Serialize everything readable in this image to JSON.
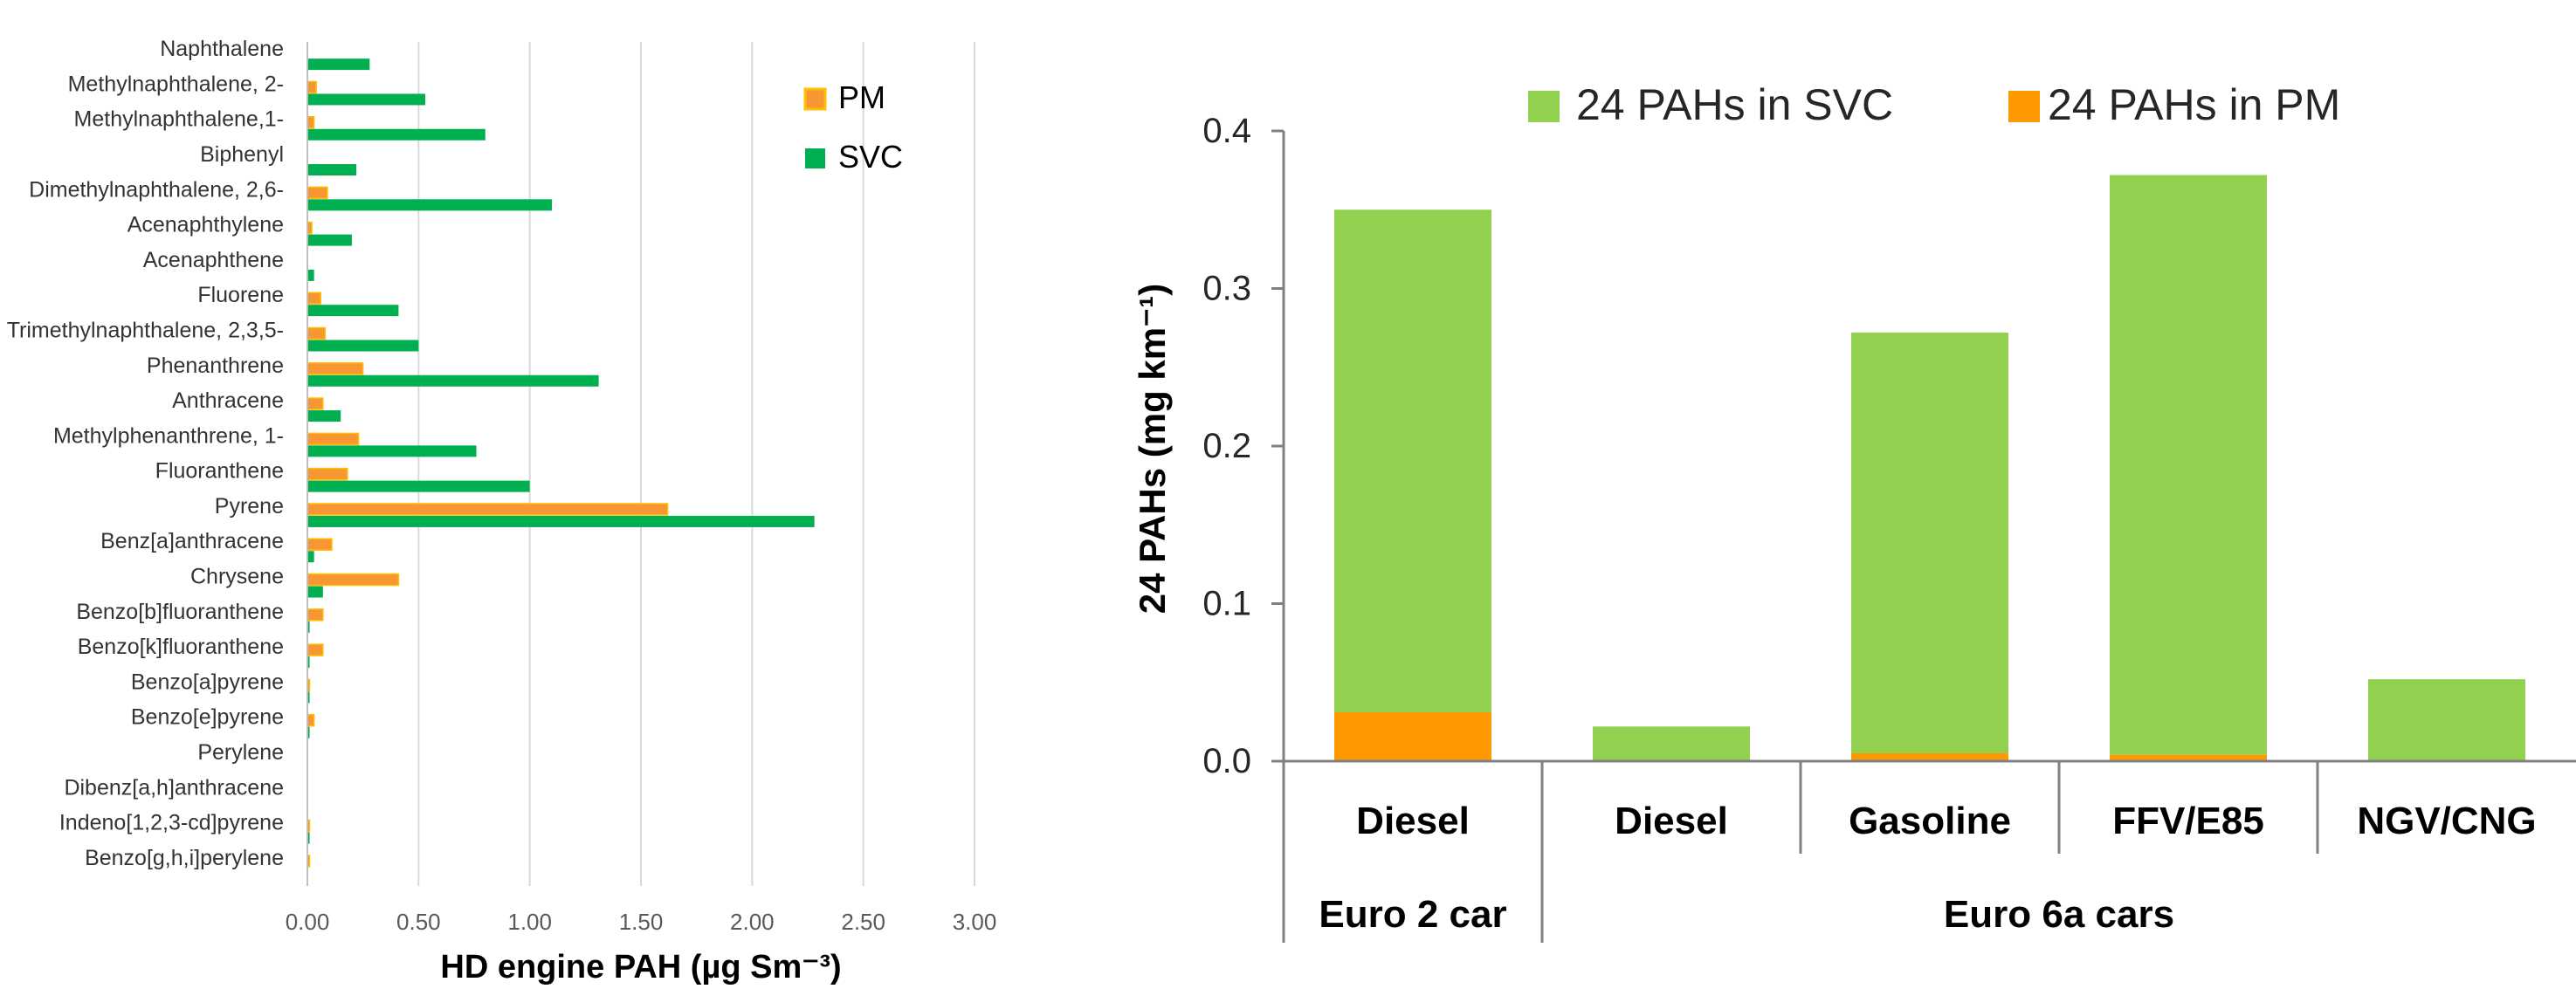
{
  "chart_data": [
    {
      "type": "bar",
      "orientation": "horizontal",
      "categories": [
        "Naphthalene",
        "Methylnaphthalene, 2-",
        "Methylnaphthalene,1-",
        "Biphenyl",
        "Dimethylnaphthalene, 2,6-",
        "Acenaphthylene",
        "Acenaphthene",
        "Fluorene",
        "Trimethylnaphthalene, 2,3,5-",
        "Phenanthrene",
        "Anthracene",
        "Methylphenanthrene, 1-",
        "Fluoranthene",
        "Pyrene",
        "Benz[a]anthracene",
        "Chrysene",
        "Benzo[b]fluoranthene",
        "Benzo[k]fluoranthene",
        "Benzo[a]pyrene",
        "Benzo[e]pyrene",
        "Perylene",
        "Dibenz[a,h]anthracene",
        "Indeno[1,2,3-cd]pyrene",
        "Benzo[g,h,i]perylene"
      ],
      "series": [
        {
          "name": "PM",
          "color": "#f79633",
          "values": [
            0.0,
            0.04,
            0.03,
            0.0,
            0.09,
            0.02,
            0.0,
            0.06,
            0.08,
            0.25,
            0.07,
            0.23,
            0.18,
            1.62,
            0.11,
            0.41,
            0.07,
            0.07,
            0.01,
            0.03,
            0.0,
            0.0,
            0.01,
            0.01
          ]
        },
        {
          "name": "SVC",
          "color": "#00b050",
          "values": [
            0.28,
            0.53,
            0.8,
            0.22,
            1.1,
            0.2,
            0.03,
            0.41,
            0.5,
            1.31,
            0.15,
            0.76,
            1.0,
            2.28,
            0.03,
            0.07,
            0.01,
            0.01,
            0.01,
            0.01,
            0.0,
            0.0,
            0.01,
            0.0
          ]
        }
      ],
      "xlabel": "HD engine PAH (µg Sm⁻³)",
      "xlim": [
        0,
        3
      ],
      "ticks": [
        "0.00",
        "0.50",
        "1.00",
        "1.50",
        "2.00",
        "2.50",
        "3.00"
      ],
      "grid": true,
      "legend": "top-right"
    },
    {
      "type": "bar",
      "stacked": true,
      "categories": [
        "Diesel",
        "Diesel",
        "Gasoline",
        "FFV/E85",
        "NGV/CNG"
      ],
      "groups": [
        {
          "label": "Euro 2 car",
          "span": 1
        },
        {
          "label": "Euro 6a cars",
          "span": 4
        }
      ],
      "series": [
        {
          "name": "24 PAHs in PM",
          "color": "#ff9900",
          "values": [
            0.031,
            0.0,
            0.005,
            0.004,
            0.0
          ]
        },
        {
          "name": "24 PAHs in SVC",
          "color": "#92d050",
          "values": [
            0.319,
            0.022,
            0.267,
            0.368,
            0.052
          ]
        }
      ],
      "ylabel": "24 PAHs (mg km⁻¹)",
      "ylim": [
        0,
        0.4
      ],
      "ticks": [
        "0.0",
        "0.1",
        "0.2",
        "0.3",
        "0.4"
      ],
      "grid": false,
      "legend": "top"
    }
  ]
}
